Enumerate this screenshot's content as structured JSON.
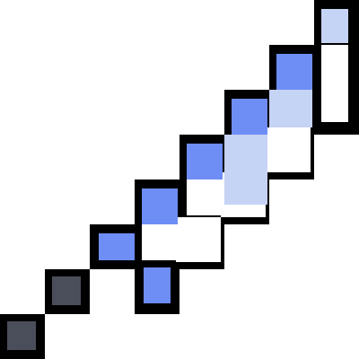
{
  "sprite": {
    "icon": "pixel-sword-icon",
    "colors": {
      "outline": "#000000",
      "blade_fill": "#ffffff",
      "edge": "#6e8df5",
      "edge_light": "#c5d3f5",
      "hilt": "#4a4e5a"
    }
  }
}
